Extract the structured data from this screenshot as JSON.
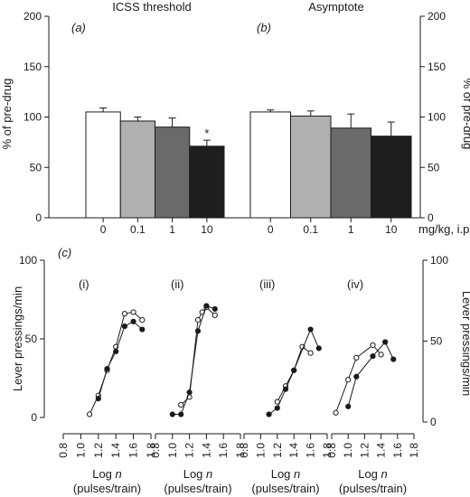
{
  "chart_data": [
    {
      "type": "bar",
      "panel_tag": "(a)",
      "title": "ICSS threshold",
      "ylabel": "% of pre-drug",
      "ylim": [
        0,
        200
      ],
      "yticks": [
        0,
        50,
        100,
        150,
        200
      ],
      "categories": [
        "0",
        "0.1",
        "1",
        "10"
      ],
      "values": [
        105,
        96,
        90,
        71
      ],
      "errors": [
        4,
        4,
        9,
        6
      ],
      "bar_colors": [
        "#ffffff",
        "#b0b0b0",
        "#6a6a6a",
        "#1e1e1e"
      ],
      "significance": [
        null,
        null,
        null,
        "*"
      ]
    },
    {
      "type": "bar",
      "panel_tag": "(b)",
      "title": "Asymptote",
      "ylabel": "% of pre-drug",
      "ylim": [
        0,
        200
      ],
      "yticks": [
        0,
        50,
        100,
        150,
        200
      ],
      "categories": [
        "0",
        "0.1",
        "1",
        "10"
      ],
      "values": [
        105,
        101,
        89,
        81
      ],
      "errors": [
        2,
        5,
        14,
        14
      ],
      "bar_colors": [
        "#ffffff",
        "#b0b0b0",
        "#6a6a6a",
        "#1e1e1e"
      ],
      "xlabel": "mg/kg, i.p."
    },
    {
      "type": "line",
      "panel_tag": "(c)",
      "ylabel": "Lever pressings/min",
      "ylim": [
        0,
        100
      ],
      "yticks": [
        0,
        50,
        100
      ],
      "xlim": [
        0.8,
        1.8
      ],
      "xticks": [
        "0.8",
        "1.0",
        "1.2",
        "1.4",
        "1.6",
        "1.8"
      ],
      "xlabel_line1": "Log",
      "xlabel_var": "n",
      "xlabel_line2": "(pulses/train)",
      "subpanels": [
        {
          "label": "(i)",
          "series": [
            {
              "marker": "open",
              "x": [
                1.1,
                1.2,
                1.3,
                1.4,
                1.5,
                1.6,
                1.7
              ],
              "y": [
                2,
                14,
                30,
                45,
                66,
                67,
                62
              ]
            },
            {
              "marker": "filled",
              "x": [
                1.2,
                1.3,
                1.4,
                1.5,
                1.6,
                1.7
              ],
              "y": [
                12,
                31,
                42,
                58,
                61,
                56
              ]
            }
          ]
        },
        {
          "label": "(ii)",
          "series": [
            {
              "marker": "open",
              "x": [
                1.1,
                1.2,
                1.3,
                1.35,
                1.4,
                1.5
              ],
              "y": [
                8,
                13,
                62,
                67,
                70,
                65
              ]
            },
            {
              "marker": "filled",
              "x": [
                1.0,
                1.1,
                1.2,
                1.3,
                1.4,
                1.5
              ],
              "y": [
                2,
                2,
                16,
                55,
                71,
                69
              ]
            }
          ]
        },
        {
          "label": "(iii)",
          "series": [
            {
              "marker": "open",
              "x": [
                1.2,
                1.3,
                1.4,
                1.5,
                1.6
              ],
              "y": [
                10,
                20,
                30,
                45,
                41
              ]
            },
            {
              "marker": "filled",
              "x": [
                1.1,
                1.2,
                1.3,
                1.4,
                1.6,
                1.7
              ],
              "y": [
                2,
                6,
                18,
                30,
                56,
                44
              ]
            }
          ]
        },
        {
          "label": "(iv)",
          "series": [
            {
              "marker": "open",
              "x": [
                0.85,
                1.0,
                1.1,
                1.3,
                1.4
              ],
              "y": [
                3,
                24,
                38,
                46,
                40
              ]
            },
            {
              "marker": "filled",
              "x": [
                1.0,
                1.1,
                1.3,
                1.45,
                1.55
              ],
              "y": [
                7,
                26,
                39,
                48,
                37
              ]
            }
          ]
        }
      ]
    }
  ]
}
